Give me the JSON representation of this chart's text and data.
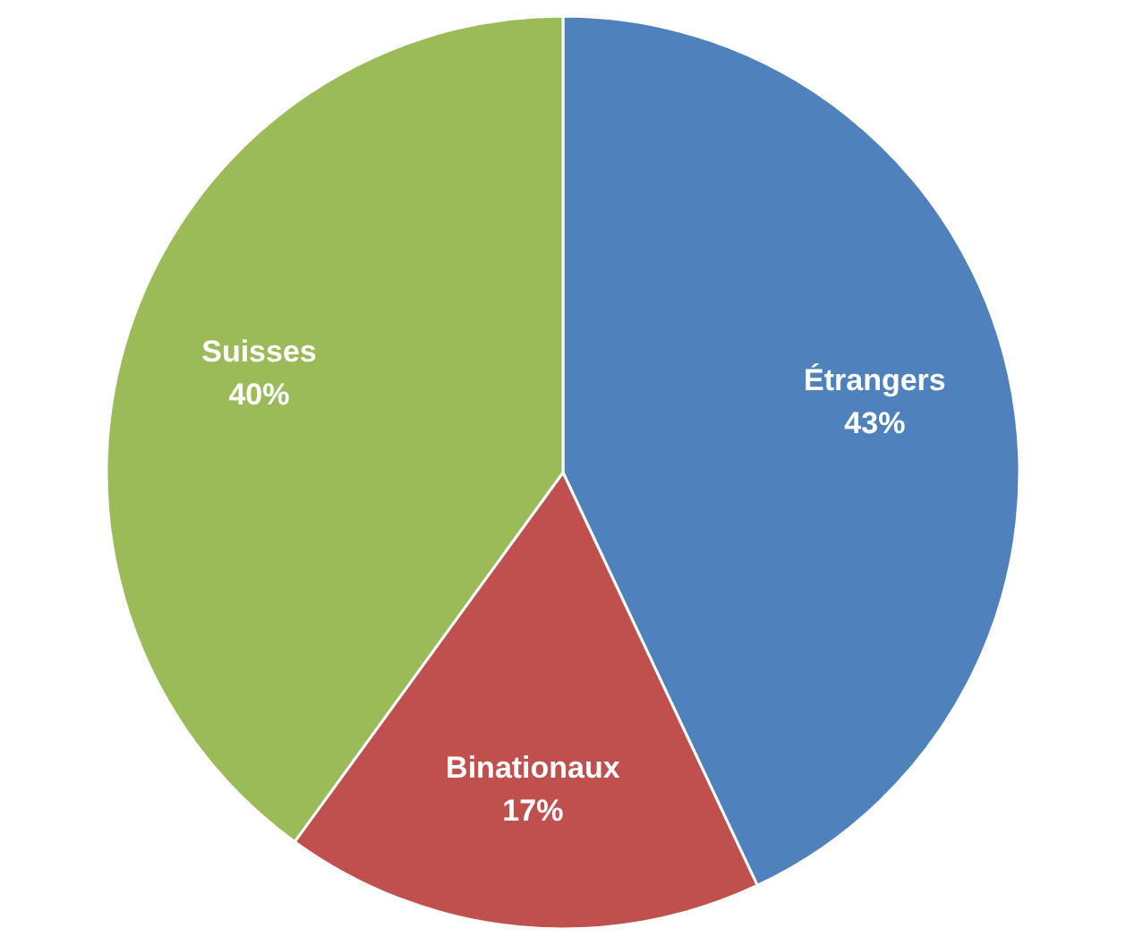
{
  "chart_data": {
    "type": "pie",
    "categories": [
      "Étrangers",
      "Binationaux",
      "Suisses"
    ],
    "values": [
      43,
      17,
      40
    ],
    "value_labels": [
      "43%",
      "17%",
      "40%"
    ],
    "colors": [
      "#4f81bd",
      "#c0504d",
      "#9bbb59"
    ],
    "legend": false
  }
}
